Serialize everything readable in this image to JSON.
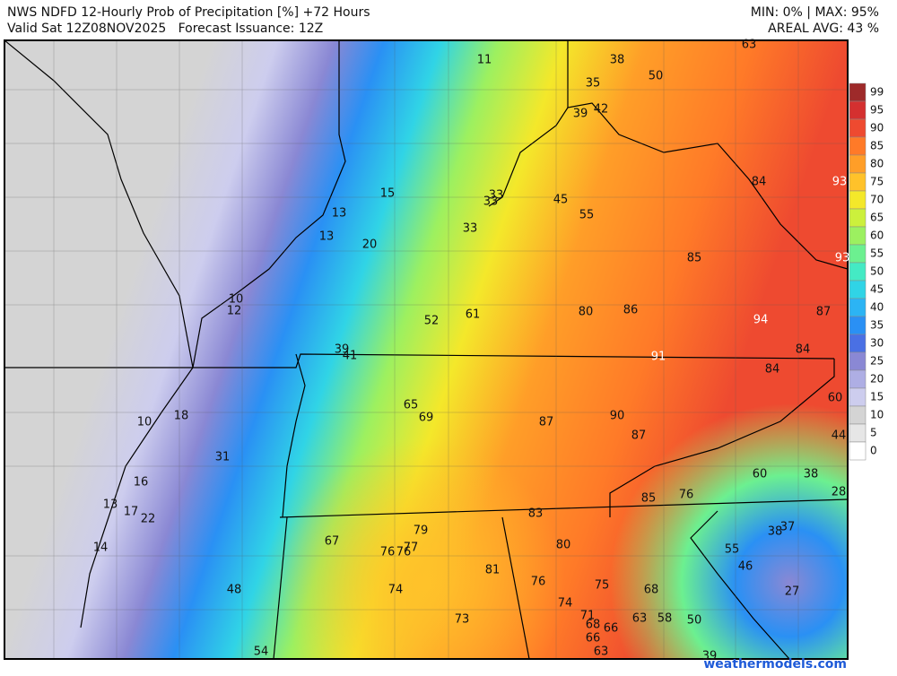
{
  "header": {
    "title": "NWS NDFD 12-Hourly Prob of Precipitation [%] +72 Hours",
    "valid": "Valid Sat 12Z08NOV2025   Forecast Issuance: 12Z",
    "minmax": "MIN: 0% | MAX: 95%",
    "areal": "AREAL AVG: 43 %"
  },
  "legend": {
    "ticks": [
      99,
      95,
      90,
      85,
      80,
      75,
      70,
      65,
      60,
      55,
      50,
      45,
      40,
      35,
      30,
      25,
      20,
      15,
      10,
      5,
      0
    ],
    "colors": [
      "#9e2a2a",
      "#d43030",
      "#ee4a30",
      "#ff7a28",
      "#ff9e28",
      "#ffc22a",
      "#f4e82a",
      "#ccf03c",
      "#9cf060",
      "#6cf090",
      "#44eac4",
      "#30d4e6",
      "#2cb4f4",
      "#2a90f4",
      "#4a70e4",
      "#8a88d4",
      "#aeaee4",
      "#cdcdee",
      "#d4d4d4",
      "#e6e6e6",
      "#ffffff"
    ]
  },
  "stations": {
    "values": [
      11,
      63,
      38,
      50,
      35,
      39,
      42,
      15,
      33,
      33,
      45,
      55,
      84,
      93,
      13,
      13,
      20,
      33,
      85,
      93,
      10,
      12,
      52,
      61,
      80,
      86,
      94,
      87,
      39,
      41,
      91,
      84,
      84,
      60,
      65,
      69,
      90,
      87,
      10,
      18,
      87,
      44,
      31,
      60,
      38,
      16,
      85,
      76,
      28,
      13,
      17,
      22,
      83,
      37,
      38,
      79,
      67,
      80,
      14,
      76,
      76,
      77,
      55,
      46,
      81,
      76,
      75,
      74,
      48,
      68,
      27,
      74,
      71,
      73,
      68,
      66,
      63,
      58,
      50,
      66,
      54,
      63,
      39
    ]
  },
  "footer": "weathermodels.com"
}
